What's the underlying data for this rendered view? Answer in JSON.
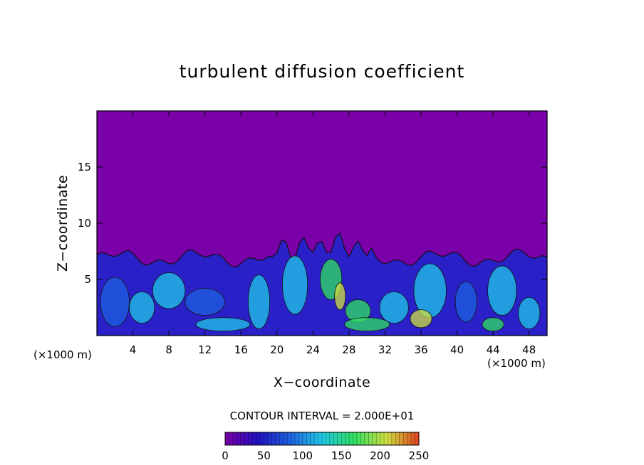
{
  "chart_data": {
    "type": "heatmap",
    "title": "turbulent diffusion coefficient",
    "xlabel": "X−coordinate",
    "ylabel": "Z−coordinate",
    "x_unit_label": "(×1000 m)",
    "xlim": [
      0,
      50
    ],
    "ylim": [
      0,
      20
    ],
    "x_ticks": [
      4,
      8,
      12,
      16,
      20,
      24,
      28,
      32,
      36,
      40,
      44,
      48
    ],
    "y_ticks": [
      5,
      10,
      15
    ],
    "contour_interval_text": "CONTOUR INTERVAL = 2.000E+01",
    "colorbar": {
      "min": 0,
      "max": 250,
      "ticks": [
        0,
        50,
        100,
        150,
        200,
        250
      ],
      "colors": [
        "#7a00a8",
        "#2010c0",
        "#1e60e0",
        "#20c8e8",
        "#30e060",
        "#d0e040",
        "#e04020"
      ]
    },
    "background_value": 0,
    "turbulent_layer_top_z": 7.5,
    "turbulent_layer_x_range": [
      0,
      50
    ]
  }
}
